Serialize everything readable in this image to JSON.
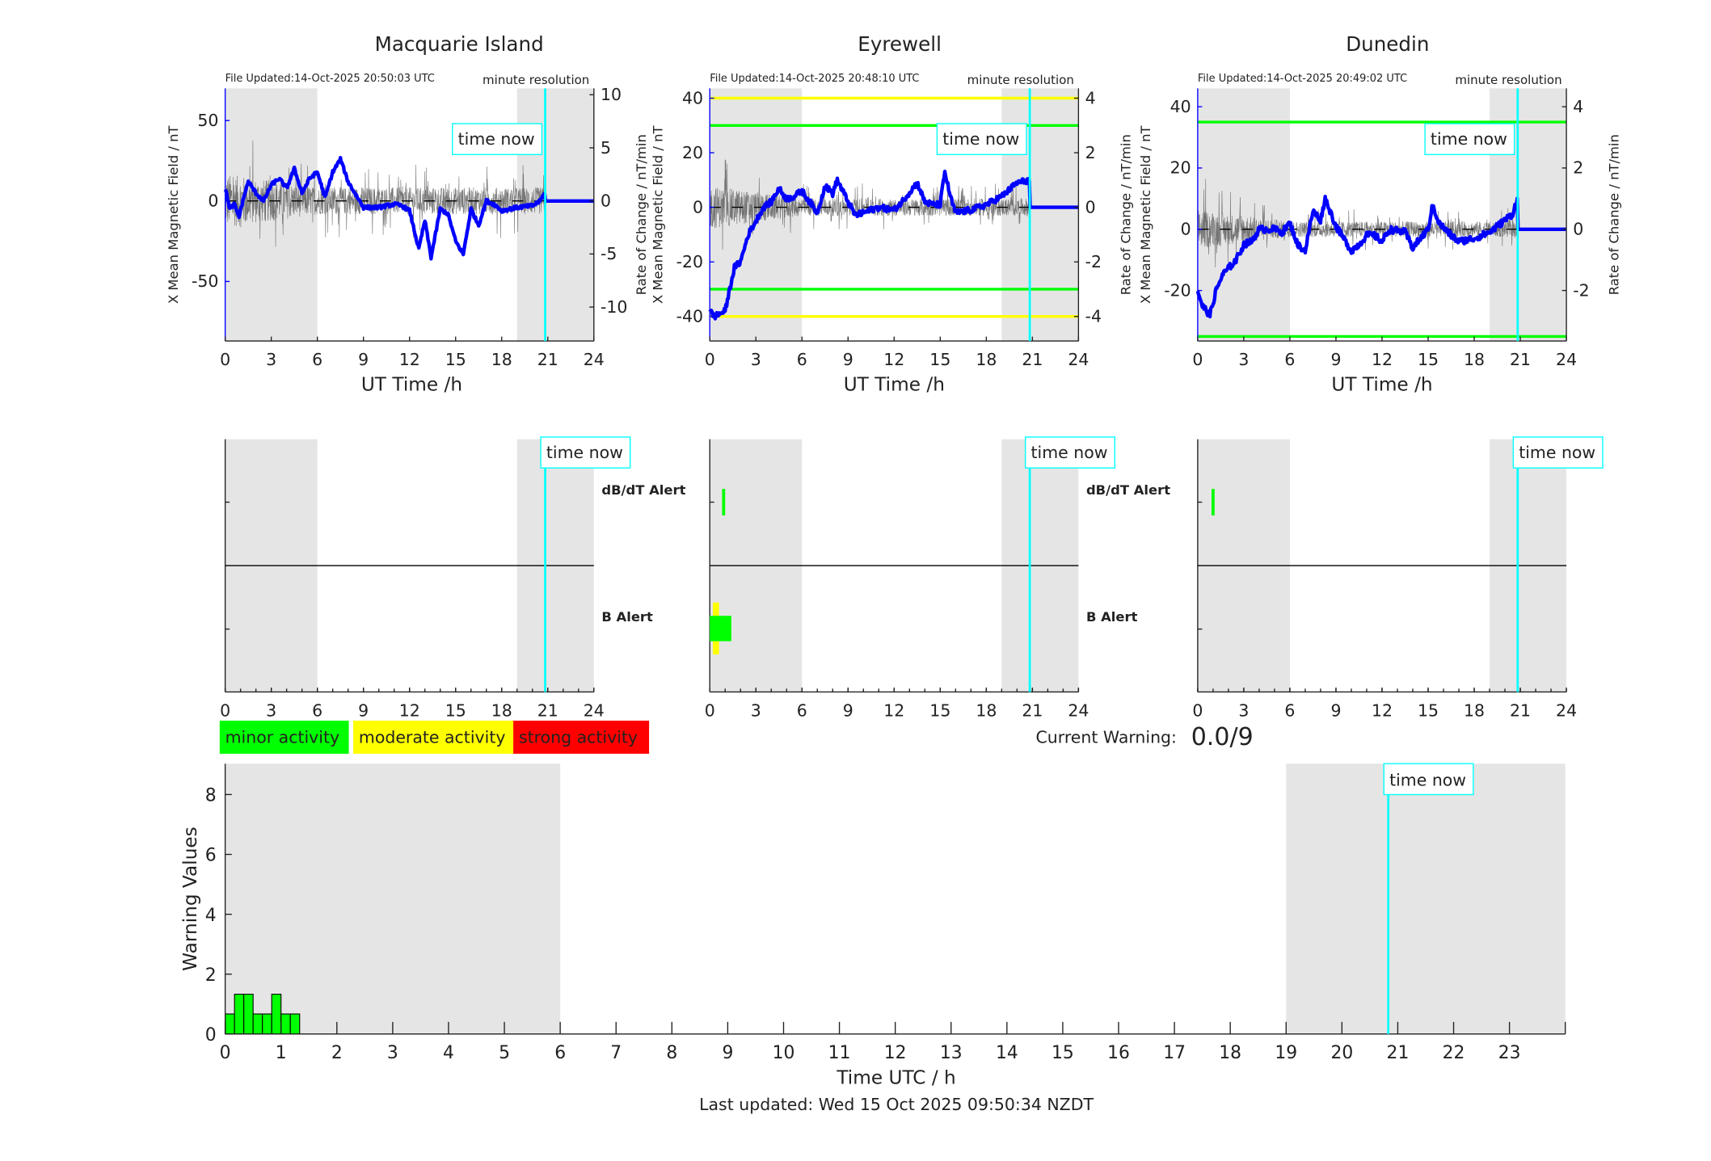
{
  "common": {
    "xlabel": "UT Time /h",
    "xticks": [
      0,
      3,
      6,
      9,
      12,
      15,
      18,
      21,
      24
    ],
    "time_now_label": "time now",
    "time_now_hour": 20.83,
    "night_bands": [
      [
        0,
        6
      ],
      [
        19,
        24
      ]
    ],
    "colors": {
      "field": "#0000ff",
      "noise": "#555555",
      "night": "#e5e5e5",
      "now": "#00ffff",
      "minor": "#00ff00",
      "moderate": "#ffff00",
      "strong": "#ff0000"
    }
  },
  "stations": [
    {
      "title": "Macquarie Island",
      "file_updated": "File Updated:14-Oct-2025 20:50:03 UTC",
      "resolution": "minute resolution",
      "ylabel_left": "X Mean Magnetic Field / nT",
      "ylabel_right": "Rate of Change / nT/min",
      "ylim": [
        -87,
        70
      ],
      "yticks": [
        -50,
        0,
        50
      ],
      "y2lim": [
        -13.2,
        10.6
      ],
      "y2ticks": [
        -10,
        -5,
        0,
        5,
        10
      ],
      "thresholds": [],
      "noise_amp": 3.2,
      "noise_decay": 0.5,
      "field": [
        [
          0,
          8
        ],
        [
          0.3,
          -5
        ],
        [
          0.6,
          -2
        ],
        [
          0.9,
          -10
        ],
        [
          1.2,
          2
        ],
        [
          1.5,
          12
        ],
        [
          2,
          5
        ],
        [
          2.5,
          0
        ],
        [
          3,
          10
        ],
        [
          3.5,
          14
        ],
        [
          4,
          8
        ],
        [
          4.5,
          20
        ],
        [
          5,
          5
        ],
        [
          5.5,
          14
        ],
        [
          6,
          18
        ],
        [
          6.5,
          2
        ],
        [
          7,
          18
        ],
        [
          7.5,
          26
        ],
        [
          8,
          12
        ],
        [
          8.5,
          4
        ],
        [
          9,
          -4
        ],
        [
          10,
          -4
        ],
        [
          11,
          -2
        ],
        [
          11.5,
          -3
        ],
        [
          12,
          -6
        ],
        [
          12.6,
          -30
        ],
        [
          13,
          -12
        ],
        [
          13.4,
          -35
        ],
        [
          14,
          -5
        ],
        [
          14.5,
          -8
        ],
        [
          15,
          -25
        ],
        [
          15.5,
          -33
        ],
        [
          16,
          -5
        ],
        [
          16.5,
          -15
        ],
        [
          17,
          0
        ],
        [
          17.5,
          -2
        ],
        [
          18,
          -6
        ],
        [
          19,
          -4
        ],
        [
          20,
          -3
        ],
        [
          20.5,
          0
        ],
        [
          20.8,
          5
        ],
        [
          20.85,
          0
        ],
        [
          24,
          0
        ]
      ],
      "alerts": {
        "dbdt": [],
        "b_minor": [],
        "b_moderate": []
      }
    },
    {
      "title": "Eyrewell",
      "file_updated": "File Updated:14-Oct-2025 20:48:10 UTC",
      "resolution": "minute resolution",
      "ylabel_left": "X Mean Magnetic Field / nT",
      "ylabel_right": "Rate of Change / nT/min",
      "ylim": [
        -49,
        43.6
      ],
      "yticks": [
        -40,
        -20,
        0,
        20,
        40
      ],
      "y2lim": [
        -4.9,
        4.36
      ],
      "y2ticks": [
        -4,
        -2,
        0,
        2,
        4
      ],
      "thresholds": [
        {
          "value": 40,
          "color": "#ffff00"
        },
        {
          "value": -40,
          "color": "#ffff00"
        },
        {
          "value": 30,
          "color": "#00ff00"
        },
        {
          "value": -30,
          "color": "#00ff00"
        }
      ],
      "noise_amp": 1.0,
      "noise_decay": 0.6,
      "field": [
        [
          0,
          -38
        ],
        [
          0.3,
          -40
        ],
        [
          1,
          -38
        ],
        [
          1.3,
          -30
        ],
        [
          1.6,
          -22
        ],
        [
          2,
          -20
        ],
        [
          2.5,
          -10
        ],
        [
          3,
          -5
        ],
        [
          3.5,
          0
        ],
        [
          4,
          2
        ],
        [
          4.5,
          7
        ],
        [
          5,
          3
        ],
        [
          5.5,
          4
        ],
        [
          6,
          6
        ],
        [
          6.5,
          2
        ],
        [
          7,
          -2
        ],
        [
          7.5,
          8
        ],
        [
          8,
          5
        ],
        [
          8.3,
          10
        ],
        [
          9,
          2
        ],
        [
          9.5,
          -3
        ],
        [
          10,
          -2
        ],
        [
          11,
          0
        ],
        [
          12,
          -1
        ],
        [
          12.5,
          2
        ],
        [
          13.5,
          9
        ],
        [
          14,
          2
        ],
        [
          14.5,
          1
        ],
        [
          15,
          1
        ],
        [
          15.3,
          13
        ],
        [
          15.7,
          3
        ],
        [
          16,
          -2
        ],
        [
          17,
          -1
        ],
        [
          18,
          1
        ],
        [
          19,
          4
        ],
        [
          20,
          9
        ],
        [
          20.8,
          10
        ],
        [
          20.85,
          0
        ],
        [
          24,
          0
        ]
      ],
      "alerts": {
        "dbdt": [
          [
            0.8,
            1.0
          ]
        ],
        "b_minor": [
          [
            0,
            1.4
          ]
        ],
        "b_moderate": [
          [
            0.2,
            0.6
          ]
        ]
      }
    },
    {
      "title": "Dunedin",
      "file_updated": "File Updated:14-Oct-2025 20:49:02 UTC",
      "resolution": "minute resolution",
      "ylabel_left": "X Mean Magnetic Field / nT",
      "ylabel_right": "Rate of Change / nT/min",
      "ylim": [
        -36.5,
        46
      ],
      "yticks": [
        -20,
        0,
        20,
        40
      ],
      "y2lim": [
        -3.65,
        4.6
      ],
      "y2ticks": [
        -2,
        0,
        2,
        4
      ],
      "thresholds": [
        {
          "value": 35,
          "color": "#00ff00"
        },
        {
          "value": -35,
          "color": "#00ff00"
        }
      ],
      "noise_amp": 0.8,
      "noise_decay": 0.6,
      "field": [
        [
          0,
          -20
        ],
        [
          0.3,
          -25
        ],
        [
          0.8,
          -28
        ],
        [
          1.2,
          -20
        ],
        [
          1.6,
          -15
        ],
        [
          2.5,
          -10
        ],
        [
          3,
          -5
        ],
        [
          3.5,
          -4
        ],
        [
          4,
          0
        ],
        [
          5,
          0
        ],
        [
          5.5,
          -1
        ],
        [
          6,
          2
        ],
        [
          6.5,
          -5
        ],
        [
          7,
          -7
        ],
        [
          7.5,
          6
        ],
        [
          8,
          3
        ],
        [
          8.3,
          10
        ],
        [
          9,
          1
        ],
        [
          9.5,
          -3
        ],
        [
          10,
          -7
        ],
        [
          10.5,
          -5
        ],
        [
          11,
          -2
        ],
        [
          11.5,
          -2
        ],
        [
          12,
          -4
        ],
        [
          12.5,
          0
        ],
        [
          13.5,
          -1
        ],
        [
          14,
          -6
        ],
        [
          14.5,
          -3
        ],
        [
          15,
          0
        ],
        [
          15.3,
          8
        ],
        [
          15.7,
          2
        ],
        [
          16.5,
          -2
        ],
        [
          17,
          -4
        ],
        [
          18,
          -3
        ],
        [
          19,
          -1
        ],
        [
          20,
          3
        ],
        [
          20.5,
          5
        ],
        [
          20.8,
          10
        ],
        [
          20.85,
          0
        ],
        [
          24,
          0
        ]
      ],
      "alerts": {
        "dbdt": [
          [
            0.9,
            1.1
          ]
        ],
        "b_minor": [],
        "b_moderate": []
      }
    }
  ],
  "alert_labels": {
    "dbdt": "dB/dT Alert",
    "b": "B Alert"
  },
  "legend": [
    {
      "label": "minor activity",
      "color": "#00ff00"
    },
    {
      "label": "moderate activity",
      "color": "#ffff00"
    },
    {
      "label": "strong activity",
      "color": "#ff0000"
    }
  ],
  "current_warning": {
    "label": "Current Warning:",
    "value": "0.0/9"
  },
  "chart_data": {
    "type": "bar",
    "title": "",
    "xlabel": "Time UTC / h",
    "ylabel": "Warning Values",
    "xlim": [
      0,
      24
    ],
    "ylim": [
      0,
      9.03
    ],
    "xticks": [
      0,
      1,
      2,
      3,
      4,
      5,
      6,
      7,
      8,
      9,
      10,
      11,
      12,
      13,
      14,
      15,
      16,
      17,
      18,
      19,
      20,
      21,
      22,
      23
    ],
    "yticks": [
      0,
      2,
      4,
      6,
      8
    ],
    "bin_width_h": 0.1667,
    "x": [
      0,
      0.1667,
      0.3333,
      0.5,
      0.6667,
      0.8333,
      1.0,
      1.1667
    ],
    "values": [
      0.67,
      1.33,
      1.33,
      0.67,
      0.67,
      1.33,
      0.67,
      0.67
    ],
    "bar_color": "#00ff00",
    "night_bands": [
      [
        0,
        6
      ],
      [
        19,
        24
      ]
    ],
    "time_now_hour": 20.83,
    "time_now_label": "time now"
  },
  "footer": "Last updated: Wed 15 Oct 2025 09:50:34 NZDT"
}
